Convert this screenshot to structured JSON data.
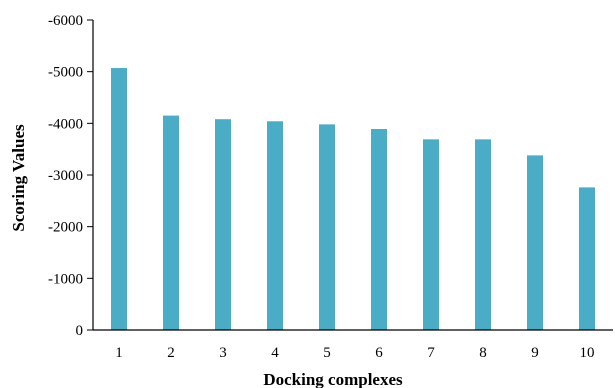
{
  "chart_data": {
    "type": "bar",
    "title": "",
    "xlabel": "Docking complexes",
    "ylabel": "Scoring Values",
    "categories": [
      "1",
      "2",
      "3",
      "4",
      "5",
      "6",
      "7",
      "8",
      "9",
      "10"
    ],
    "values": [
      -5070,
      -4150,
      -4080,
      -4040,
      -3980,
      -3890,
      -3690,
      -3690,
      -3380,
      -2760
    ],
    "ylim": [
      0,
      -6000
    ],
    "yticks": [
      0,
      -1000,
      -2000,
      -3000,
      -4000,
      -5000,
      -6000
    ],
    "ytick_labels": [
      "0",
      "-1000",
      "-2000",
      "-3000",
      "-4000",
      "-5000",
      "-6000"
    ],
    "y_axis_reversed": true,
    "grid": false,
    "legend": "none",
    "bar_color": "#4BACC6",
    "axis_color": "#000000"
  }
}
